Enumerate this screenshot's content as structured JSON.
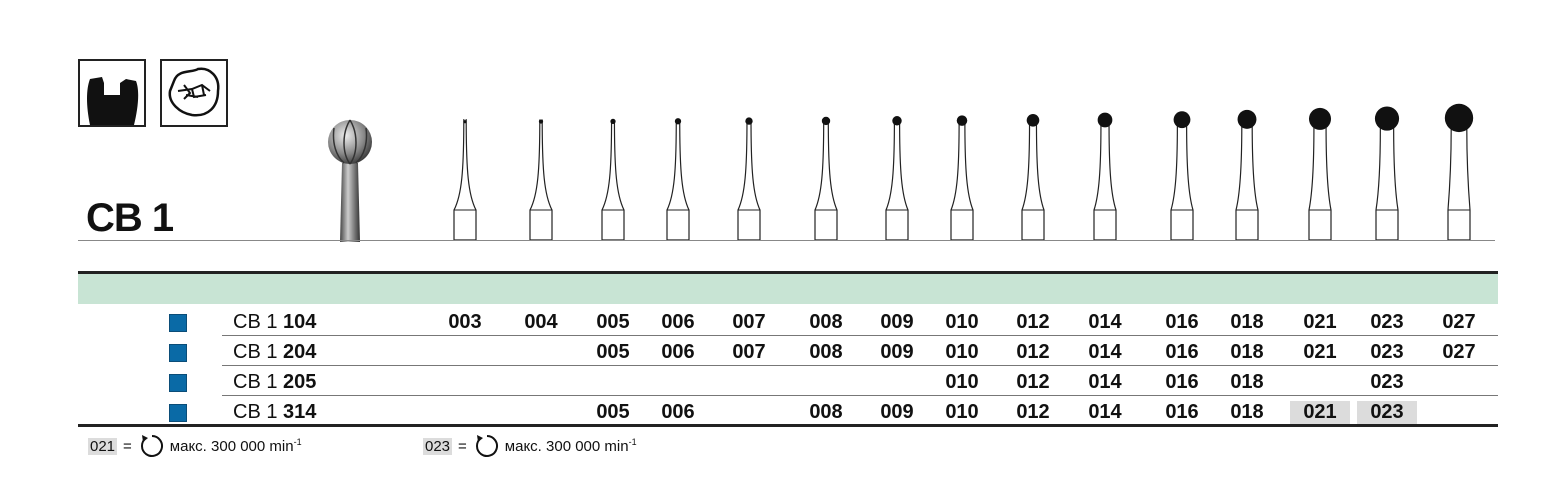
{
  "title": "CB 1",
  "icons": [
    "crown-preparation-icon",
    "occlusal-fissure-icon"
  ],
  "colors": {
    "band": "#c8e4d4",
    "square": "#0a6aa6",
    "highlight": "#dcdcdc"
  },
  "sizes": [
    "003",
    "004",
    "005",
    "006",
    "007",
    "008",
    "009",
    "010",
    "012",
    "014",
    "016",
    "018",
    "021",
    "023",
    "027"
  ],
  "rows": [
    {
      "prefix": "CB 1",
      "code": "104",
      "values": [
        "003",
        "004",
        "005",
        "006",
        "007",
        "008",
        "009",
        "010",
        "012",
        "014",
        "016",
        "018",
        "021",
        "023",
        "027"
      ],
      "highlight": []
    },
    {
      "prefix": "CB 1",
      "code": "204",
      "values": [
        "",
        "",
        "005",
        "006",
        "007",
        "008",
        "009",
        "010",
        "012",
        "014",
        "016",
        "018",
        "021",
        "023",
        "027"
      ],
      "highlight": []
    },
    {
      "prefix": "CB 1",
      "code": "205",
      "values": [
        "",
        "",
        "",
        "",
        "",
        "",
        "",
        "010",
        "012",
        "014",
        "016",
        "018",
        "",
        "023",
        ""
      ],
      "highlight": []
    },
    {
      "prefix": "CB 1",
      "code": "314",
      "values": [
        "",
        "",
        "005",
        "006",
        "",
        "008",
        "009",
        "010",
        "012",
        "014",
        "016",
        "018",
        "021",
        "023",
        ""
      ],
      "highlight": [
        "021",
        "023"
      ]
    }
  ],
  "footnotes": [
    {
      "size": "021",
      "eq": "=",
      "text": "макс. 300 000 min",
      "sup": "-1"
    },
    {
      "size": "023",
      "eq": "=",
      "text": "макс. 300 000 min",
      "sup": "-1"
    }
  ]
}
